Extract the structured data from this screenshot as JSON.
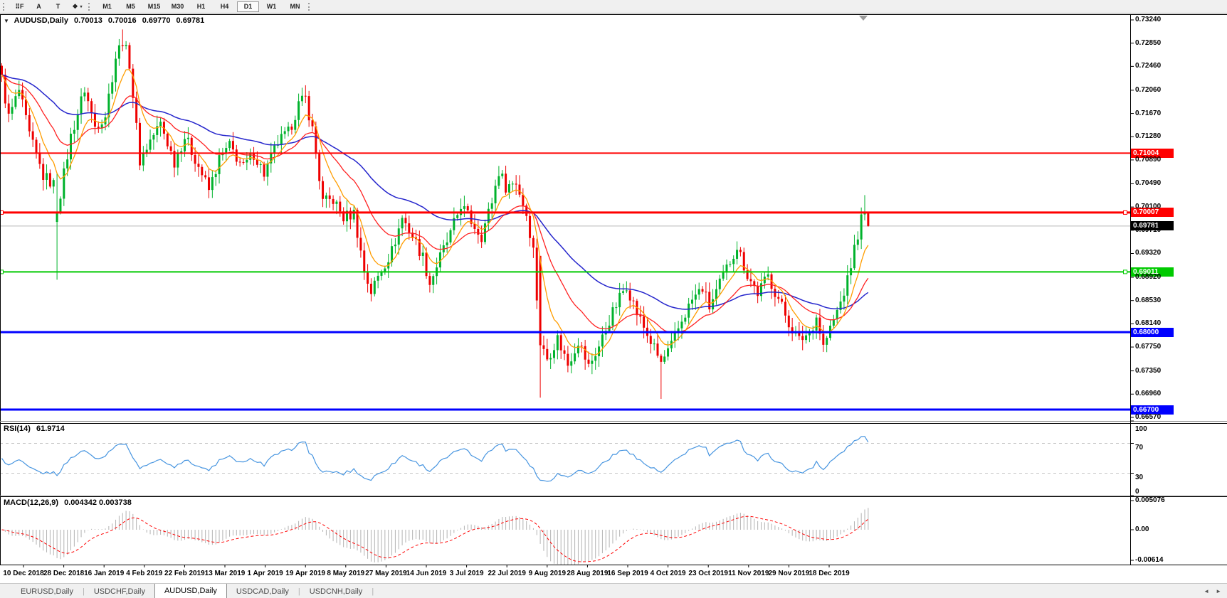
{
  "toolbar": {
    "tools": [
      {
        "name": "grid-f-icon",
        "glyph": "⠿F"
      },
      {
        "name": "font-a-icon",
        "glyph": "A"
      },
      {
        "name": "text-box-icon",
        "glyph": "T"
      },
      {
        "name": "arrows-objects-icon",
        "glyph": "❖",
        "caret": "▾"
      }
    ],
    "timeframes": [
      "M1",
      "M5",
      "M15",
      "M30",
      "H1",
      "H4",
      "D1",
      "W1",
      "MN"
    ],
    "active_timeframe": "D1"
  },
  "chart": {
    "dropdown_glyph": "▼",
    "symbol": "AUDUSD,Daily",
    "ohlc": {
      "open": "0.70013",
      "high": "0.70016",
      "low": "0.69770",
      "close": "0.69781"
    },
    "price_axis_labels": [
      "0.73240",
      "0.72850",
      "0.72460",
      "0.72060",
      "0.71670",
      "0.71280",
      "0.70890",
      "0.70490",
      "0.70100",
      "0.69710",
      "0.69320",
      "0.68920",
      "0.68530",
      "0.68140",
      "0.67750",
      "0.67350",
      "0.66960",
      "0.66570"
    ],
    "hlines": [
      {
        "price": 0.71004,
        "label": "0.71004",
        "color": "#ff0000",
        "width": 2,
        "handles": false
      },
      {
        "price": 0.70007,
        "label": "0.70007",
        "color": "#ff0000",
        "width": 3,
        "handles": true
      },
      {
        "price": 0.69011,
        "label": "0.69011",
        "color": "#00ca00",
        "width": 2,
        "handles": true
      },
      {
        "price": 0.68,
        "label": "0.68000",
        "color": "#0000ff",
        "width": 3,
        "handles": false
      },
      {
        "price": 0.667,
        "label": "0.66700",
        "color": "#0000ff",
        "width": 3,
        "handles": false
      }
    ],
    "current_price": {
      "value": 0.69781,
      "label": "0.69781",
      "line_color": "#b8b8b8",
      "badge_color": "#000000"
    },
    "date_axis_labels": [
      "10 Dec 2018",
      "28 Dec 2018",
      "16 Jan 2019",
      "4 Feb 2019",
      "22 Feb 2019",
      "13 Mar 2019",
      "1 Apr 2019",
      "19 Apr 2019",
      "8 May 2019",
      "27 May 2019",
      "14 Jun 2019",
      "3 Jul 2019",
      "22 Jul 2019",
      "9 Aug 2019",
      "28 Aug 2019",
      "16 Sep 2019",
      "4 Oct 2019",
      "23 Oct 2019",
      "11 Nov 2019",
      "29 Nov 2019",
      "18 Dec 2019"
    ]
  },
  "rsi": {
    "name": "RSI(14)",
    "value": "61.9714",
    "line_color": "#4795e0",
    "levels": [
      {
        "label": "100",
        "value": 100,
        "dashed": false
      },
      {
        "label": "70",
        "value": 70,
        "dashed": true
      },
      {
        "label": "30",
        "value": 30,
        "dashed": true
      },
      {
        "label": "0",
        "value": 0,
        "dashed": false
      }
    ]
  },
  "macd": {
    "name": "MACD(12,26,9)",
    "values_text": "0.004342 0.003738",
    "histogram_color": "#b2b2b2",
    "signal_color": "#ff0000",
    "axis_labels": [
      {
        "label": "0.005076",
        "value": 0.005076
      },
      {
        "label": "0.00",
        "value": 0
      },
      {
        "label": "-0.00614",
        "value": -0.00614
      }
    ]
  },
  "tabs": {
    "items": [
      {
        "label": "EURUSD,Daily",
        "active": false
      },
      {
        "label": "USDCHF,Daily",
        "active": false
      },
      {
        "label": "AUDUSD,Daily",
        "active": true
      },
      {
        "label": "USDCAD,Daily",
        "active": false
      },
      {
        "label": "USDCNH,Daily",
        "active": false
      }
    ],
    "scroll_left": "◄",
    "scroll_right": "►"
  },
  "chart_data": {
    "type": "candlestick",
    "symbol": "AUDUSD",
    "timeframe": "Daily",
    "bars": 252,
    "price_range": {
      "top": 0.7324,
      "bottom": 0.6657
    },
    "last_bar": {
      "open": 0.70013,
      "high": 0.70016,
      "low": 0.6977,
      "close": 0.69781
    },
    "up_color": "#00b22c",
    "down_color": "#ee0000",
    "noise": 0.0022,
    "anchors": [
      [
        0,
        0.7225
      ],
      [
        2,
        0.716
      ],
      [
        5,
        0.7205
      ],
      [
        8,
        0.713
      ],
      [
        12,
        0.7062
      ],
      [
        15,
        0.7048
      ],
      [
        16,
        0.7002
      ],
      [
        20,
        0.7128
      ],
      [
        24,
        0.7208
      ],
      [
        27,
        0.7145
      ],
      [
        30,
        0.7165
      ],
      [
        33,
        0.7262
      ],
      [
        35,
        0.729
      ],
      [
        37,
        0.7252
      ],
      [
        40,
        0.7088
      ],
      [
        43,
        0.7122
      ],
      [
        46,
        0.715
      ],
      [
        50,
        0.7086
      ],
      [
        53,
        0.7128
      ],
      [
        56,
        0.7092
      ],
      [
        60,
        0.7038
      ],
      [
        63,
        0.709
      ],
      [
        66,
        0.7112
      ],
      [
        70,
        0.7076
      ],
      [
        73,
        0.71
      ],
      [
        76,
        0.7066
      ],
      [
        80,
        0.7118
      ],
      [
        83,
        0.7134
      ],
      [
        86,
        0.7182
      ],
      [
        88,
        0.7192
      ],
      [
        90,
        0.714
      ],
      [
        93,
        0.7018
      ],
      [
        96,
        0.7022
      ],
      [
        99,
        0.6992
      ],
      [
        102,
        0.7
      ],
      [
        105,
        0.6902
      ],
      [
        107,
        0.6868
      ],
      [
        110,
        0.6906
      ],
      [
        113,
        0.6936
      ],
      [
        116,
        0.6992
      ],
      [
        119,
        0.6962
      ],
      [
        122,
        0.6926
      ],
      [
        124,
        0.6882
      ],
      [
        127,
        0.6926
      ],
      [
        130,
        0.6964
      ],
      [
        133,
        0.7014
      ],
      [
        136,
        0.6986
      ],
      [
        139,
        0.6962
      ],
      [
        142,
        0.702
      ],
      [
        144,
        0.707
      ],
      [
        146,
        0.7045
      ],
      [
        149,
        0.7052
      ],
      [
        152,
        0.6998
      ],
      [
        154,
        0.6938
      ],
      [
        156,
        0.6778
      ],
      [
        158,
        0.6756
      ],
      [
        161,
        0.679
      ],
      [
        164,
        0.6746
      ],
      [
        167,
        0.6786
      ],
      [
        170,
        0.6742
      ],
      [
        173,
        0.6776
      ],
      [
        176,
        0.682
      ],
      [
        179,
        0.6858
      ],
      [
        181,
        0.688
      ],
      [
        184,
        0.6832
      ],
      [
        187,
        0.6796
      ],
      [
        191,
        0.6748
      ],
      [
        194,
        0.6776
      ],
      [
        197,
        0.682
      ],
      [
        200,
        0.6854
      ],
      [
        203,
        0.6874
      ],
      [
        205,
        0.6842
      ],
      [
        208,
        0.688
      ],
      [
        211,
        0.692
      ],
      [
        213,
        0.6945
      ],
      [
        216,
        0.6896
      ],
      [
        219,
        0.6866
      ],
      [
        222,
        0.6894
      ],
      [
        225,
        0.6856
      ],
      [
        228,
        0.6816
      ],
      [
        231,
        0.6786
      ],
      [
        234,
        0.68
      ],
      [
        236,
        0.6826
      ],
      [
        238,
        0.6776
      ],
      [
        241,
        0.682
      ],
      [
        243,
        0.685
      ],
      [
        245,
        0.6886
      ],
      [
        247,
        0.694
      ],
      [
        249,
        0.699
      ],
      [
        250,
        0.7002
      ],
      [
        251,
        0.69781
      ]
    ],
    "overrides": {
      "16": {
        "open": 0.6985,
        "close": 0.7002,
        "low": 0.6888
      },
      "35": {
        "high": 0.7308
      },
      "156": {
        "open": 0.6928,
        "close": 0.6778,
        "low": 0.669
      },
      "191": {
        "low": 0.6688
      },
      "250": {
        "close": 0.70013,
        "high": 0.703
      },
      "251": {
        "open": 0.70013,
        "high": 0.70016,
        "low": 0.6977,
        "close": 0.69781
      }
    },
    "moving_averages": [
      {
        "period": 8,
        "color": "#ff9d00",
        "width": 1.3
      },
      {
        "period": 22,
        "color": "#ff2222",
        "width": 1.3
      },
      {
        "period": 55,
        "color": "#2525cc",
        "width": 1.5
      }
    ],
    "rsi_period": 14,
    "macd_periods": [
      12,
      26,
      9
    ]
  }
}
